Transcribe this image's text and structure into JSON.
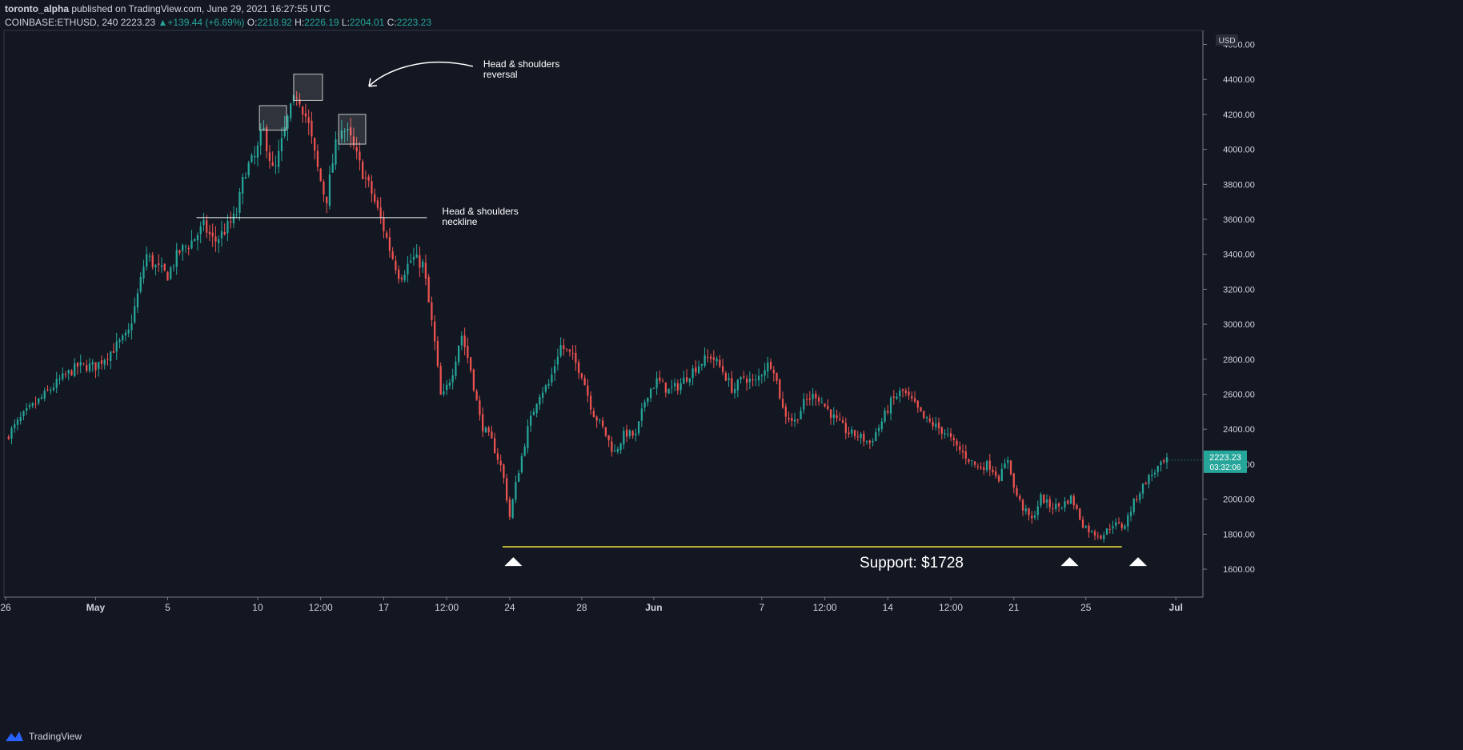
{
  "header": {
    "author": "toronto_alpha",
    "published_text": " published on TradingView.com, June 29, 2021 16:27:55 UTC",
    "symbol": "COINBASE:ETHUSD, 240",
    "last": "2223.23",
    "change": "+139.44 (+6.69%)",
    "o_label": "O:",
    "o_value": "2218.92",
    "h_label": "H:",
    "h_value": "2226.19",
    "l_label": "L:",
    "l_value": "2204.01",
    "c_label": "C:",
    "c_value": "2223.23"
  },
  "footer": {
    "brand": "TradingView"
  },
  "price_box": {
    "price": "2223.23",
    "countdown": "03:32:06"
  },
  "colors": {
    "background": "#131722",
    "up": "#26a69a",
    "down": "#ef5350",
    "support": "#ffeb3b",
    "text": "#d1d4dc",
    "axis_line": "#787b86"
  },
  "annotations": {
    "reversal": [
      "Head & shoulders",
      "reversal"
    ],
    "neckline_label": [
      "Head & shoulders",
      "neckline"
    ],
    "support": "Support: $1728"
  },
  "chart_data": {
    "type": "candlestick",
    "symbol": "COINBASE:ETHUSD",
    "interval": "240",
    "currency": "USD",
    "ylim": [
      1440,
      4680
    ],
    "y_ticks": [
      1600,
      1800,
      2000,
      2200,
      2400,
      2600,
      2800,
      3000,
      3200,
      3400,
      3600,
      3800,
      4000,
      4200,
      4400,
      4600
    ],
    "y_tick_labels": [
      "1600.00",
      "1800.00",
      "2000.00",
      "2200.00",
      "2400.00",
      "2600.00",
      "2800.00",
      "3000.00",
      "3200.00",
      "3400.00",
      "3600.00",
      "3800.00",
      "4000.00",
      "4200.00",
      "4400.00",
      "4600.00"
    ],
    "x_ticks": [
      {
        "label": "26",
        "day": 0.0
      },
      {
        "label": "May",
        "day": 5.0
      },
      {
        "label": "5",
        "day": 9.0
      },
      {
        "label": "10",
        "day": 14.0
      },
      {
        "label": "12:00",
        "day": 17.5
      },
      {
        "label": "17",
        "day": 21.0
      },
      {
        "label": "12:00",
        "day": 24.5
      },
      {
        "label": "24",
        "day": 28.0
      },
      {
        "label": "28",
        "day": 32.0
      },
      {
        "label": "Jun",
        "day": 36.0
      },
      {
        "label": "7",
        "day": 42.0
      },
      {
        "label": "12:00",
        "day": 45.5
      },
      {
        "label": "14",
        "day": 49.0
      },
      {
        "label": "12:00",
        "day": 52.5
      },
      {
        "label": "21",
        "day": 56.0
      },
      {
        "label": "25",
        "day": 60.0
      },
      {
        "label": "Jul",
        "day": 65.0
      }
    ],
    "x_range_days": [
      0,
      66.5
    ],
    "path_points": [
      [
        0.0,
        2350
      ],
      [
        1.0,
        2480
      ],
      [
        2.0,
        2580
      ],
      [
        3.0,
        2680
      ],
      [
        4.0,
        2760
      ],
      [
        5.0,
        2760
      ],
      [
        6.0,
        2860
      ],
      [
        6.8,
        2940
      ],
      [
        7.3,
        3150
      ],
      [
        7.8,
        3400
      ],
      [
        8.3,
        3330
      ],
      [
        9.0,
        3280
      ],
      [
        9.6,
        3410
      ],
      [
        10.3,
        3470
      ],
      [
        11.0,
        3560
      ],
      [
        11.6,
        3470
      ],
      [
        12.2,
        3540
      ],
      [
        12.8,
        3620
      ],
      [
        13.3,
        3880
      ],
      [
        13.9,
        3960
      ],
      [
        14.3,
        4120
      ],
      [
        14.9,
        3850
      ],
      [
        15.6,
        4150
      ],
      [
        16.2,
        4330
      ],
      [
        16.8,
        4150
      ],
      [
        17.3,
        3900
      ],
      [
        17.8,
        3700
      ],
      [
        18.2,
        3950
      ],
      [
        18.6,
        4140
      ],
      [
        19.1,
        4070
      ],
      [
        19.7,
        3900
      ],
      [
        20.3,
        3760
      ],
      [
        20.9,
        3580
      ],
      [
        21.4,
        3410
      ],
      [
        21.9,
        3270
      ],
      [
        22.6,
        3380
      ],
      [
        23.2,
        3340
      ],
      [
        23.5,
        3120
      ],
      [
        23.8,
        2920
      ],
      [
        24.2,
        2560
      ],
      [
        24.8,
        2720
      ],
      [
        25.3,
        2950
      ],
      [
        25.8,
        2760
      ],
      [
        26.4,
        2430
      ],
      [
        27.0,
        2330
      ],
      [
        27.6,
        2160
      ],
      [
        28.0,
        1900
      ],
      [
        28.4,
        2120
      ],
      [
        29.0,
        2400
      ],
      [
        29.6,
        2600
      ],
      [
        30.2,
        2660
      ],
      [
        30.8,
        2880
      ],
      [
        31.4,
        2820
      ],
      [
        32.0,
        2720
      ],
      [
        32.6,
        2500
      ],
      [
        33.2,
        2400
      ],
      [
        33.8,
        2260
      ],
      [
        34.4,
        2380
      ],
      [
        35.0,
        2360
      ],
      [
        35.6,
        2600
      ],
      [
        36.2,
        2680
      ],
      [
        36.8,
        2620
      ],
      [
        37.4,
        2650
      ],
      [
        38.0,
        2720
      ],
      [
        38.6,
        2780
      ],
      [
        39.2,
        2820
      ],
      [
        39.8,
        2740
      ],
      [
        40.4,
        2620
      ],
      [
        41.0,
        2700
      ],
      [
        41.6,
        2660
      ],
      [
        42.2,
        2760
      ],
      [
        42.6,
        2780
      ],
      [
        43.2,
        2500
      ],
      [
        43.8,
        2440
      ],
      [
        44.4,
        2560
      ],
      [
        45.0,
        2600
      ],
      [
        45.6,
        2520
      ],
      [
        46.2,
        2440
      ],
      [
        46.8,
        2380
      ],
      [
        47.4,
        2360
      ],
      [
        48.0,
        2320
      ],
      [
        48.6,
        2430
      ],
      [
        49.2,
        2560
      ],
      [
        49.8,
        2620
      ],
      [
        50.4,
        2550
      ],
      [
        51.0,
        2460
      ],
      [
        51.6,
        2420
      ],
      [
        52.2,
        2380
      ],
      [
        52.8,
        2300
      ],
      [
        53.4,
        2240
      ],
      [
        54.0,
        2180
      ],
      [
        54.6,
        2200
      ],
      [
        55.2,
        2120
      ],
      [
        55.7,
        2240
      ],
      [
        56.0,
        2060
      ],
      [
        56.5,
        1950
      ],
      [
        57.0,
        1880
      ],
      [
        57.5,
        2010
      ],
      [
        58.0,
        1960
      ],
      [
        58.6,
        1960
      ],
      [
        59.2,
        2010
      ],
      [
        59.8,
        1860
      ],
      [
        60.3,
        1810
      ],
      [
        60.9,
        1790
      ],
      [
        61.5,
        1860
      ],
      [
        62.1,
        1840
      ],
      [
        62.7,
        1990
      ],
      [
        63.3,
        2100
      ],
      [
        64.0,
        2180
      ],
      [
        64.6,
        2223
      ]
    ],
    "neckline": {
      "price": 3610,
      "from_day": 10.6,
      "to_day": 23.4
    },
    "support_line": {
      "price": 1728,
      "from_day": 27.6,
      "to_day": 62.0
    },
    "pattern_boxes": [
      {
        "name": "left-shoulder",
        "from_day": 14.1,
        "to_day": 15.6,
        "low": 4110,
        "high": 4250
      },
      {
        "name": "head",
        "from_day": 16.0,
        "to_day": 17.6,
        "low": 4280,
        "high": 4430
      },
      {
        "name": "right-shoulder",
        "from_day": 18.5,
        "to_day": 20.0,
        "low": 4030,
        "high": 4200
      }
    ],
    "support_markers_day": [
      28.2,
      59.1,
      62.9
    ]
  }
}
